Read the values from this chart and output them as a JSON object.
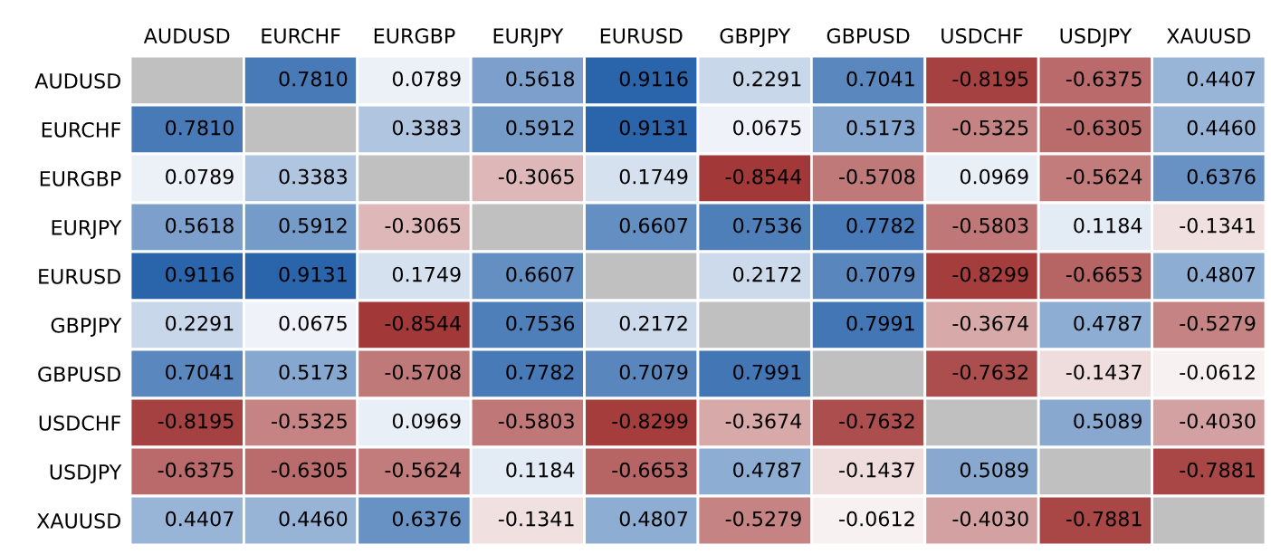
{
  "chart_data": {
    "type": "heatmap",
    "categories": [
      "AUDUSD",
      "EURCHF",
      "EURGBP",
      "EURJPY",
      "EURUSD",
      "GBPJPY",
      "GBPUSD",
      "USDCHF",
      "USDJPY",
      "XAUUSD"
    ],
    "y_categories": [
      "AUDUSD",
      "EURCHF",
      "EURGBP",
      "EURJPY",
      "EURUSD",
      "GBPJPY",
      "GBPUSD",
      "USDCHF",
      "USDJPY",
      "XAUUSD"
    ],
    "colors": [
      "#9c2b2b",
      "#ffffff",
      "#2a64ab"
    ],
    "cells": [
      [
        null,
        0.781,
        0.0789,
        0.5618,
        0.9116,
        0.2291,
        0.7041,
        -0.8195,
        -0.6375,
        0.4407
      ],
      [
        0.781,
        null,
        0.3383,
        0.5912,
        0.9131,
        0.0675,
        0.5173,
        -0.5325,
        -0.6305,
        0.446
      ],
      [
        0.0789,
        0.3383,
        null,
        -0.3065,
        0.1749,
        -0.8544,
        -0.5708,
        0.0969,
        -0.5624,
        0.6376
      ],
      [
        0.5618,
        0.5912,
        -0.3065,
        null,
        0.6607,
        0.7536,
        0.7782,
        -0.5803,
        0.1184,
        -0.1341
      ],
      [
        0.9116,
        0.9131,
        0.1749,
        0.6607,
        null,
        0.2172,
        0.7079,
        -0.8299,
        -0.6653,
        0.4807
      ],
      [
        0.2291,
        0.0675,
        -0.8544,
        0.7536,
        0.2172,
        null,
        0.7991,
        -0.3674,
        0.4787,
        -0.5279
      ],
      [
        0.7041,
        0.5173,
        -0.5708,
        0.7782,
        0.7079,
        0.7991,
        null,
        -0.7632,
        -0.1437,
        -0.0612
      ],
      [
        -0.8195,
        -0.5325,
        0.0969,
        -0.5803,
        -0.8299,
        -0.3674,
        -0.7632,
        null,
        0.5089,
        -0.403
      ],
      [
        -0.6375,
        -0.6305,
        -0.5624,
        0.1184,
        -0.6653,
        0.4787,
        -0.1437,
        0.5089,
        null,
        -0.7881
      ],
      [
        0.4407,
        0.446,
        0.6376,
        -0.1341,
        0.4807,
        -0.5279,
        -0.0612,
        -0.403,
        -0.7881,
        null
      ]
    ],
    "cell_labels": [
      [
        null,
        "0.7810",
        "0.0789",
        "0.5618",
        "0.9116",
        "0.2291",
        "0.7041",
        "-0.8195",
        "-0.6375",
        "0.4407"
      ],
      [
        "0.7810",
        null,
        "0.3383",
        "0.5912",
        "0.9131",
        "0.0675",
        "0.5173",
        "-0.5325",
        "-0.6305",
        "0.4460"
      ],
      [
        "0.0789",
        "0.3383",
        null,
        "-0.3065",
        "0.1749",
        "-0.8544",
        "-0.5708",
        "0.0969",
        "-0.5624",
        "0.6376"
      ],
      [
        "0.5618",
        "0.5912",
        "-0.3065",
        null,
        "0.6607",
        "0.7536",
        "0.7782",
        "-0.5803",
        "0.1184",
        "-0.1341"
      ],
      [
        "0.9116",
        "0.9131",
        "0.1749",
        "0.6607",
        null,
        "0.2172",
        "0.7079",
        "-0.8299",
        "-0.6653",
        "0.4807"
      ],
      [
        "0.2291",
        "0.0675",
        "-0.8544",
        "0.7536",
        "0.2172",
        null,
        "0.7991",
        "-0.3674",
        "0.4787",
        "-0.5279"
      ],
      [
        "0.7041",
        "0.5173",
        "-0.5708",
        "0.7782",
        "0.7079",
        "0.7991",
        null,
        "-0.7632",
        "-0.1437",
        "-0.0612"
      ],
      [
        "-0.8195",
        "-0.5325",
        "0.0969",
        "-0.5803",
        "-0.8299",
        "-0.3674",
        "-0.7632",
        null,
        "0.5089",
        "-0.4030"
      ],
      [
        "-0.6375",
        "-0.6305",
        "-0.5624",
        "0.1184",
        "-0.6653",
        "0.4787",
        "-0.1437",
        "0.5089",
        null,
        "-0.7881"
      ],
      [
        "0.4407",
        "0.4460",
        "0.6376",
        "-0.1341",
        "0.4807",
        "-0.5279",
        "-0.0612",
        "-0.4030",
        "-0.7881",
        null
      ]
    ]
  }
}
